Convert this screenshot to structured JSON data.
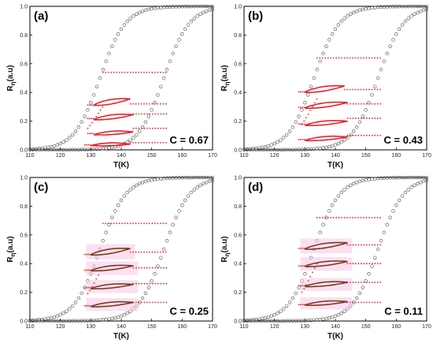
{
  "chart_data": [
    {
      "type": "scatter",
      "panel_label": "(a)",
      "annotation": "C = 0.67",
      "xlabel": "T(K)",
      "ylabel_base": "R",
      "ylabel_sub": "η",
      "ylabel_rest": "(a.u)",
      "xlim": [
        110,
        170
      ],
      "ylim": [
        0,
        1.0
      ],
      "xticks": [
        110,
        120,
        130,
        140,
        150,
        160,
        170
      ],
      "yticks": [
        0.0,
        0.2,
        0.4,
        0.6,
        0.8,
        1.0
      ],
      "major_loop": {
        "heating_midpoint_K": 154,
        "cooling_midpoint_K": 133,
        "width_K": 4.2
      },
      "minor_loops": [
        {
          "t_low": 130,
          "t_high": 143,
          "r_low": 0.03,
          "r_high": 0.04,
          "plateau": 0.05,
          "upper_dots_to": 155
        },
        {
          "t_low": 131,
          "t_high": 144,
          "r_low": 0.105,
          "r_high": 0.125,
          "plateau": 0.15,
          "upper_dots_to": 155
        },
        {
          "t_low": 131,
          "t_high": 144,
          "r_low": 0.21,
          "r_high": 0.245,
          "plateau": 0.25,
          "upper_dots_to": 155
        },
        {
          "t_low": 131,
          "t_high": 143,
          "r_low": 0.31,
          "r_high": 0.355,
          "plateau": 0.32,
          "upper_dots_to": 155
        }
      ],
      "top_plateau": {
        "value": 0.54,
        "from": 134,
        "to": 155
      }
    },
    {
      "type": "scatter",
      "panel_label": "(b)",
      "annotation": "C = 0.43",
      "xlabel": "T(K)",
      "ylabel_base": "R",
      "ylabel_sub": "η",
      "ylabel_rest": "(a.u)",
      "xlim": [
        110,
        170
      ],
      "ylim": [
        0,
        1.0
      ],
      "xticks": [
        110,
        120,
        130,
        140,
        150,
        160,
        170
      ],
      "yticks": [
        0.0,
        0.2,
        0.4,
        0.6,
        0.8,
        1.0
      ],
      "major_loop": {
        "heating_midpoint_K": 154,
        "cooling_midpoint_K": 133,
        "width_K": 4.2
      },
      "minor_loops": [
        {
          "t_low": 130,
          "t_high": 144,
          "r_low": 0.065,
          "r_high": 0.09,
          "plateau": 0.1,
          "upper_dots_to": 155
        },
        {
          "t_low": 130,
          "t_high": 144,
          "r_low": 0.17,
          "r_high": 0.2,
          "plateau": 0.22,
          "upper_dots_to": 155
        },
        {
          "t_low": 130,
          "t_high": 144,
          "r_low": 0.29,
          "r_high": 0.33,
          "plateau": 0.32,
          "upper_dots_to": 155
        },
        {
          "t_low": 130,
          "t_high": 143,
          "r_low": 0.4,
          "r_high": 0.445,
          "plateau": 0.42,
          "upper_dots_to": 155
        }
      ],
      "top_plateau": {
        "value": 0.64,
        "from": 134,
        "to": 155
      }
    },
    {
      "type": "scatter",
      "panel_label": "(c)",
      "annotation": "C = 0.25",
      "xlabel": "T(K)",
      "ylabel_base": "R",
      "ylabel_sub": "η",
      "ylabel_rest": "(a.u)",
      "xlim": [
        110,
        170
      ],
      "ylim": [
        0,
        1.0
      ],
      "xticks": [
        110,
        120,
        130,
        140,
        150,
        160,
        170
      ],
      "yticks": [
        0.0,
        0.2,
        0.4,
        0.6,
        0.8,
        1.0
      ],
      "major_loop": {
        "heating_midpoint_K": 154,
        "cooling_midpoint_K": 133,
        "width_K": 4.2
      },
      "minor_loops": [
        {
          "t_low": 130,
          "t_high": 144,
          "r_low": 0.1,
          "r_high": 0.13,
          "plateau": 0.13,
          "upper_dots_to": 155
        },
        {
          "t_low": 130,
          "t_high": 144,
          "r_low": 0.225,
          "r_high": 0.255,
          "plateau": 0.26,
          "upper_dots_to": 155
        },
        {
          "t_low": 130,
          "t_high": 144,
          "r_low": 0.35,
          "r_high": 0.385,
          "plateau": 0.37,
          "upper_dots_to": 155
        },
        {
          "t_low": 130,
          "t_high": 143,
          "r_low": 0.46,
          "r_high": 0.505,
          "plateau": 0.48,
          "upper_dots_to": 155
        }
      ],
      "top_plateau": {
        "value": 0.68,
        "from": 134,
        "to": 155
      }
    },
    {
      "type": "scatter",
      "panel_label": "(d)",
      "annotation": "C = 0.11",
      "xlabel": "T(K)",
      "ylabel_base": "R",
      "ylabel_sub": "η",
      "ylabel_rest": "(a.u)",
      "xlim": [
        110,
        170
      ],
      "ylim": [
        0,
        1.0
      ],
      "xticks": [
        110,
        120,
        130,
        140,
        150,
        160,
        170
      ],
      "yticks": [
        0.0,
        0.2,
        0.4,
        0.6,
        0.8,
        1.0
      ],
      "major_loop": {
        "heating_midpoint_K": 154,
        "cooling_midpoint_K": 133,
        "width_K": 4.2
      },
      "minor_loops": [
        {
          "t_low": 130,
          "t_high": 144,
          "r_low": 0.11,
          "r_high": 0.135,
          "plateau": 0.13,
          "upper_dots_to": 155
        },
        {
          "t_low": 130,
          "t_high": 144,
          "r_low": 0.24,
          "r_high": 0.27,
          "plateau": 0.27,
          "upper_dots_to": 155
        },
        {
          "t_low": 130,
          "t_high": 144,
          "r_low": 0.38,
          "r_high": 0.415,
          "plateau": 0.4,
          "upper_dots_to": 155
        },
        {
          "t_low": 130,
          "t_high": 144,
          "r_low": 0.5,
          "r_high": 0.545,
          "plateau": 0.53,
          "upper_dots_to": 155
        }
      ],
      "top_plateau": {
        "value": 0.72,
        "from": 134,
        "to": 155
      }
    }
  ],
  "colors": {
    "major_loop": "#4a4a4a",
    "minor_dots": "#e8202a",
    "minor_loop_a_b": "#e8202a",
    "minor_loop_c_d": "#7a3a1a",
    "highlight": "#f7c6e8",
    "axis": "#000000"
  }
}
